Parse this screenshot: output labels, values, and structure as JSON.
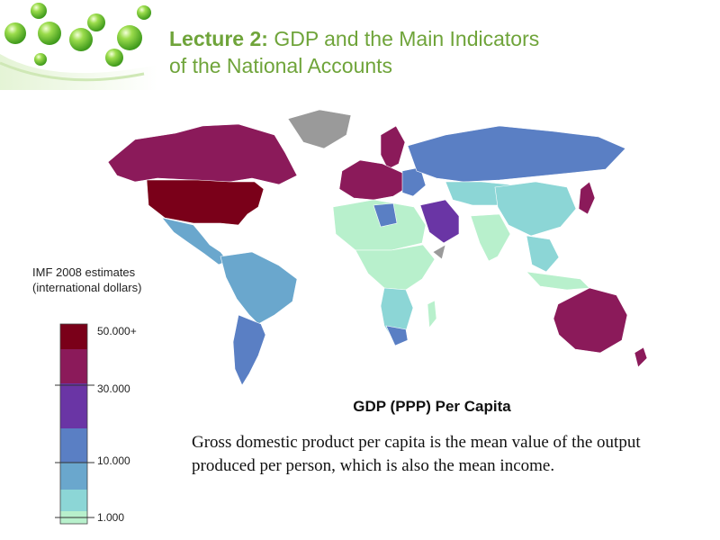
{
  "slide": {
    "title_lead": "Lecture 2:",
    "title_rest_line1": "GDP and the Main Indicators",
    "title_rest_line2": "of the National Accounts"
  },
  "map": {
    "title": "GDP (PPP) Per Capita",
    "legend_caption_line1": "IMF 2008 estimates",
    "legend_caption_line2": "(international dollars)",
    "legend_ticks": [
      "50.000+",
      "30.000",
      "10.000",
      "1.000"
    ],
    "colors": {
      "top": "#7a0019",
      "high": "#8b1a5a",
      "upper_mid": "#6a35a5",
      "mid": "#5a7fc4",
      "lower_mid": "#6aa7cd",
      "low": "#8cd6d6",
      "lowest": "#b8f0cc",
      "no_data": "#9a9a9a"
    }
  },
  "description": "Gross domestic product per capita is the mean value of the output produced per person, which is also the mean income."
}
